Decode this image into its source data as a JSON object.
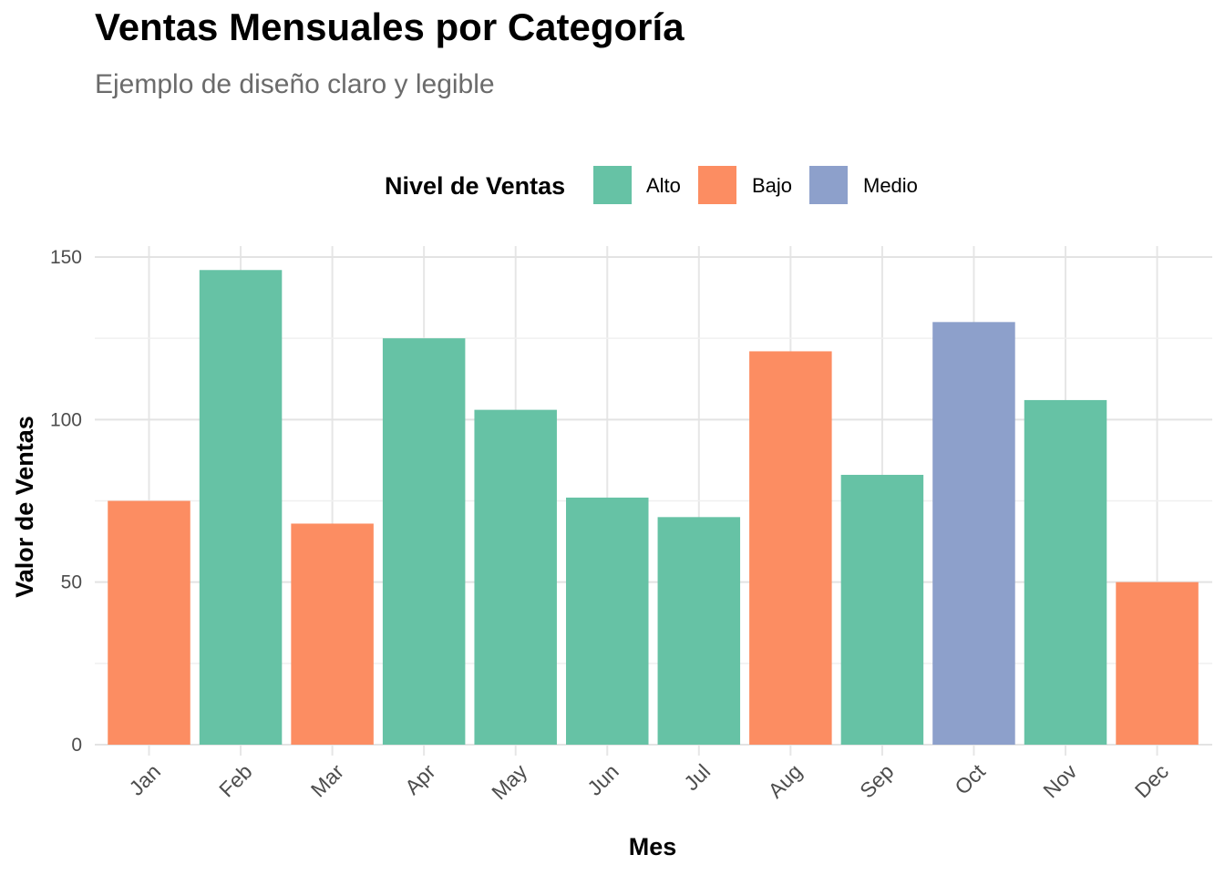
{
  "chart_data": {
    "type": "bar",
    "title": "Ventas Mensuales por Categoría",
    "subtitle": "Ejemplo de diseño claro y legible",
    "xlabel": "Mes",
    "ylabel": "Valor de Ventas",
    "ylim": [
      0,
      150
    ],
    "yticks": [
      0,
      50,
      100,
      150
    ],
    "grid": true,
    "legend": {
      "title": "Nivel de Ventas",
      "placement": "top",
      "entries": [
        {
          "label": "Alto",
          "color": "#66C2A5"
        },
        {
          "label": "Bajo",
          "color": "#FC8D62"
        },
        {
          "label": "Medio",
          "color": "#8DA0CB"
        }
      ]
    },
    "categories": [
      "Jan",
      "Feb",
      "Mar",
      "Apr",
      "May",
      "Jun",
      "Jul",
      "Aug",
      "Sep",
      "Oct",
      "Nov",
      "Dec"
    ],
    "values": [
      75,
      146,
      68,
      125,
      103,
      76,
      70,
      121,
      83,
      130,
      106,
      50
    ],
    "levels": [
      "Bajo",
      "Alto",
      "Bajo",
      "Alto",
      "Alto",
      "Alto",
      "Alto",
      "Bajo",
      "Alto",
      "Medio",
      "Alto",
      "Bajo"
    ]
  }
}
